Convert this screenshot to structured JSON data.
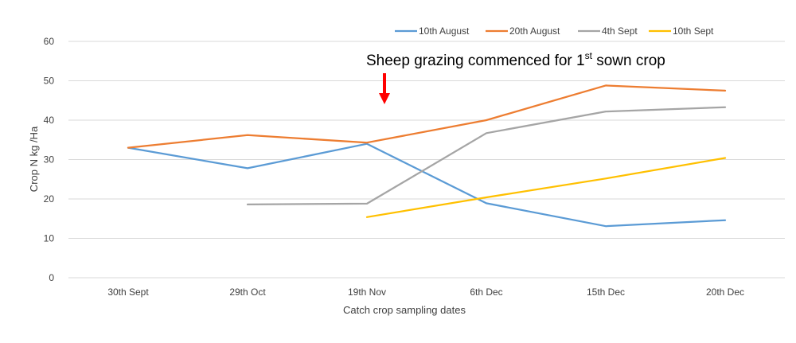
{
  "chart_data": {
    "type": "line",
    "categories": [
      "30th Sept",
      "29th Oct",
      "19th Nov",
      "6th Dec",
      "15th Dec",
      "20th Dec"
    ],
    "series": [
      {
        "name": "10th August",
        "color": "#5B9BD5",
        "values": [
          33,
          27.8,
          34,
          18.9,
          13.1,
          14.6
        ]
      },
      {
        "name": "20th August",
        "color": "#ED7D31",
        "values": [
          33,
          36.2,
          34.3,
          40,
          48.8,
          47.5
        ]
      },
      {
        "name": "4th Sept",
        "color": "#A5A5A5",
        "values": [
          null,
          18.6,
          18.8,
          36.7,
          42.2,
          43.3
        ]
      },
      {
        "name": "10th Sept",
        "color": "#FFC000",
        "values": [
          null,
          null,
          15.4,
          20.4,
          25.2,
          30.4
        ]
      }
    ],
    "title": "",
    "xlabel": "Catch crop sampling dates",
    "ylabel": "Crop N kg /Ha",
    "ylim": [
      0,
      60
    ],
    "yticks": [
      0,
      10,
      20,
      30,
      40,
      50,
      60
    ],
    "grid": true,
    "legend_position": "top-right",
    "annotation": {
      "text_before": "Sheep grazing commenced for 1",
      "superscript": "st",
      "text_after": " sown crop",
      "arrow_color": "#FF0000",
      "category": "19th Nov"
    }
  }
}
